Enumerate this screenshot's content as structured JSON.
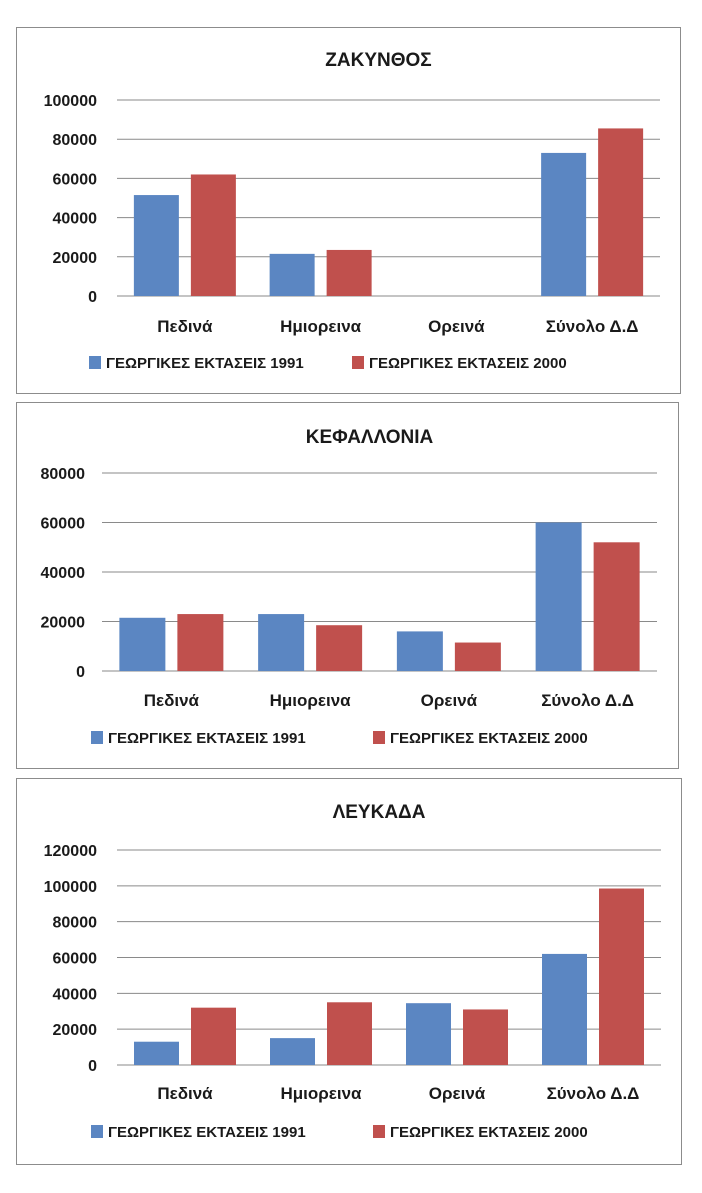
{
  "colors": {
    "series_1991": "#5b86c2",
    "series_2000": "#c0504d",
    "grid": "#8a8a8a"
  },
  "chart_data": [
    {
      "type": "bar",
      "title": "ΖΑΚΥΝΘΟΣ",
      "categories": [
        "Πεδινά",
        "Ημιορεινα",
        "Ορεινά",
        "Σύνολο Δ.Δ"
      ],
      "series": [
        {
          "name": "ΓΕΩΡΓΙΚΕΣ ΕΚΤΑΣΕΙΣ 1991",
          "values": [
            51500,
            21500,
            0,
            73000
          ]
        },
        {
          "name": "ΓΕΩΡΓΙΚΕΣ ΕΚΤΑΣΕΙΣ 2000",
          "values": [
            62000,
            23500,
            0,
            85500
          ]
        }
      ],
      "yticks": [
        "0",
        "20000",
        "40000",
        "60000",
        "80000",
        "100000"
      ],
      "ylim": [
        0,
        100000
      ],
      "grid": true,
      "legend": "bottom"
    },
    {
      "type": "bar",
      "title": "ΚΕΦΑΛΛΟΝΙΑ",
      "categories": [
        "Πεδινά",
        "Ημιορεινα",
        "Ορεινά",
        "Σύνολο Δ.Δ"
      ],
      "series": [
        {
          "name": "ΓΕΩΡΓΙΚΕΣ ΕΚΤΑΣΕΙΣ 1991",
          "values": [
            21500,
            23000,
            16000,
            60000
          ]
        },
        {
          "name": "ΓΕΩΡΓΙΚΕΣ ΕΚΤΑΣΕΙΣ 2000",
          "values": [
            23000,
            18500,
            11500,
            52000
          ]
        }
      ],
      "yticks": [
        "0",
        "20000",
        "40000",
        "60000",
        "80000"
      ],
      "ylim": [
        0,
        80000
      ],
      "grid": true,
      "legend": "bottom"
    },
    {
      "type": "bar",
      "title": "ΛΕΥΚΑΔΑ",
      "categories": [
        "Πεδινά",
        "Ημιορεινα",
        "Ορεινά",
        "Σύνολο Δ.Δ"
      ],
      "series": [
        {
          "name": "ΓΕΩΡΓΙΚΕΣ ΕΚΤΑΣΕΙΣ 1991",
          "values": [
            13000,
            15000,
            34500,
            62000
          ]
        },
        {
          "name": "ΓΕΩΡΓΙΚΕΣ ΕΚΤΑΣΕΙΣ 2000",
          "values": [
            32000,
            35000,
            31000,
            98500
          ]
        }
      ],
      "yticks": [
        "0",
        "20000",
        "40000",
        "60000",
        "80000",
        "100000",
        "120000"
      ],
      "ylim": [
        0,
        120000
      ],
      "grid": true,
      "legend": "bottom"
    }
  ]
}
